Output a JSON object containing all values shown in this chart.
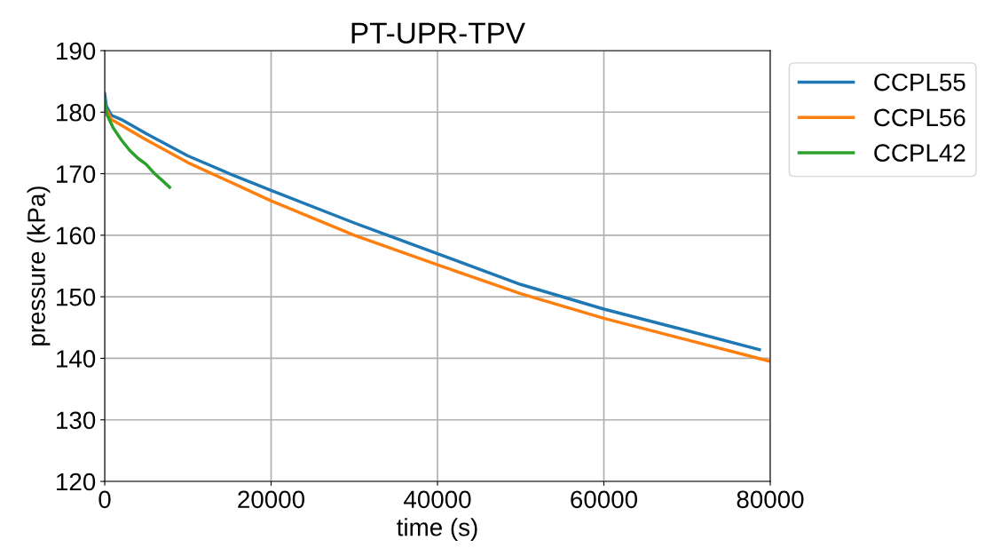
{
  "chart_data": {
    "type": "line",
    "title": "PT-UPR-TPV",
    "xlabel": "time (s)",
    "ylabel": "pressure (kPa)",
    "xlim": [
      0,
      80000
    ],
    "xticks": [
      0,
      20000,
      40000,
      60000,
      80000
    ],
    "ylim": [
      120,
      190
    ],
    "yticks": [
      120,
      130,
      140,
      150,
      160,
      170,
      180,
      190
    ],
    "grid": true,
    "legend": "top right",
    "line_style": "solid",
    "marker": "none",
    "series": [
      {
        "name": "CCPL55",
        "color": "#1f77b4",
        "x": [
          0,
          200,
          800,
          2000,
          5000,
          10000,
          15000,
          20000,
          30000,
          40000,
          50000,
          60000,
          70000,
          78700
        ],
        "values": [
          183,
          181,
          179.5,
          178.8,
          176.5,
          172.9,
          170,
          167.3,
          162,
          157,
          152,
          148,
          144.5,
          141.4
        ]
      },
      {
        "name": "CCPL56",
        "color": "#ff7f0e",
        "x": [
          0,
          800,
          5000,
          10000,
          20000,
          30000,
          40000,
          50000,
          60000,
          70000,
          80000
        ],
        "values": [
          181,
          178.8,
          175.5,
          171.8,
          165.6,
          160,
          155.2,
          150.5,
          146.5,
          143,
          139.5
        ]
      },
      {
        "name": "CCPL42",
        "color": "#2ca02c",
        "x": [
          0,
          300,
          1000,
          2000,
          3000,
          4000,
          5000,
          6000,
          7000,
          7800
        ],
        "values": [
          182,
          179.5,
          177.5,
          175.5,
          173.8,
          172.5,
          171.5,
          170,
          168.8,
          167.8
        ]
      }
    ]
  }
}
